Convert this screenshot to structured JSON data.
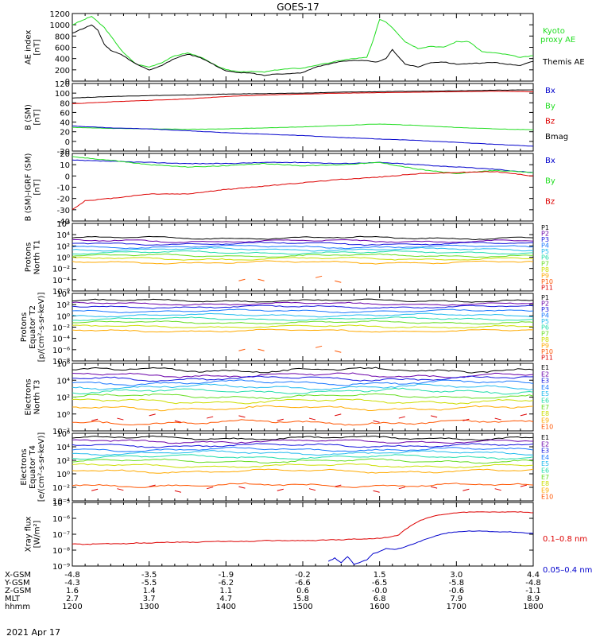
{
  "title": "GOES-17",
  "date_label": "2021 Apr 17",
  "colors": {
    "black": "#000000",
    "red": "#dd0000",
    "green": "#22dd22",
    "blue": "#0000cc",
    "p1": "#000000",
    "p2": "#6a00a8",
    "p3": "#1515dd",
    "p4": "#1a78ff",
    "p5": "#22bbee",
    "p6": "#22ddaa",
    "p7": "#66dd22",
    "p8": "#ccdd00",
    "p9": "#ffaa00",
    "p10": "#ff5500",
    "p11": "#dd0000"
  },
  "x_axis": {
    "hhmm": [
      "1200",
      "1300",
      "1400",
      "1500",
      "1600",
      "1700",
      "1800"
    ],
    "row_labels": [
      "X-GSM",
      "Y-GSM",
      "Z-GSM",
      "MLT",
      "hhmm"
    ],
    "x_gsm": [
      "-4.8",
      "-3.5",
      "-1.9",
      "-0.2",
      "1.5",
      "3.0",
      "4.4"
    ],
    "y_gsm": [
      "-4.3",
      "-5.5",
      "-6.2",
      "-6.6",
      "-6.5",
      "-5.8",
      "-4.8"
    ],
    "z_gsm": [
      "1.6",
      "1.4",
      "1.1",
      "0.6",
      "-0.0",
      "-0.6",
      "-1.1"
    ],
    "mlt": [
      "2.7",
      "3.7",
      "4.7",
      "5.8",
      "6.8",
      "7.9",
      "8.9"
    ]
  },
  "chart_data": [
    {
      "type": "line",
      "panel": "ae",
      "ylabel": [
        "AE index",
        "[nT]"
      ],
      "ylim": [
        0,
        1200
      ],
      "yticks": [
        "0",
        "200",
        "400",
        "600",
        "800",
        "1000",
        "1200"
      ],
      "legend": [
        {
          "label": "Kyoto",
          "color": "green"
        },
        {
          "label": "proxy AE",
          "color": "green"
        },
        {
          "label": "Themis AE",
          "color": "black"
        }
      ],
      "series": [
        {
          "name": "Kyoto proxy AE",
          "color": "green",
          "x": [
            1200,
            1210,
            1215,
            1220,
            1225,
            1230,
            1240,
            1250,
            1300,
            1310,
            1320,
            1330,
            1340,
            1350,
            1400,
            1410,
            1420,
            1430,
            1440,
            1450,
            1500,
            1510,
            1520,
            1530,
            1540,
            1550,
            1555,
            1600,
            1605,
            1610,
            1620,
            1630,
            1640,
            1650,
            1700,
            1710,
            1720,
            1730,
            1740,
            1750,
            1800
          ],
          "y": [
            1000,
            1100,
            1150,
            1050,
            950,
            800,
            500,
            300,
            250,
            330,
            450,
            500,
            430,
            300,
            200,
            170,
            170,
            160,
            200,
            220,
            230,
            280,
            320,
            370,
            400,
            420,
            720,
            1100,
            1050,
            950,
            700,
            580,
            620,
            600,
            700,
            700,
            520,
            500,
            470,
            420,
            450
          ]
        },
        {
          "name": "Themis AE",
          "color": "black",
          "x": [
            1200,
            1210,
            1215,
            1220,
            1225,
            1230,
            1240,
            1250,
            1300,
            1310,
            1320,
            1330,
            1340,
            1350,
            1400,
            1410,
            1420,
            1430,
            1440,
            1450,
            1500,
            1510,
            1520,
            1530,
            1540,
            1550,
            1555,
            1600,
            1605,
            1610,
            1620,
            1630,
            1640,
            1650,
            1700,
            1710,
            1720,
            1730,
            1740,
            1750,
            1800
          ],
          "y": [
            850,
            950,
            1000,
            900,
            650,
            550,
            450,
            300,
            200,
            280,
            400,
            480,
            420,
            300,
            180,
            150,
            140,
            100,
            130,
            130,
            150,
            250,
            300,
            350,
            370,
            360,
            340,
            350,
            400,
            560,
            300,
            250,
            330,
            340,
            300,
            310,
            320,
            330,
            300,
            280,
            350
          ]
        }
      ]
    },
    {
      "type": "line",
      "panel": "b",
      "ylabel": [
        "B (SM)",
        "[nT]"
      ],
      "ylim": [
        -20,
        120
      ],
      "yticks": [
        "-20",
        "0",
        "20",
        "40",
        "60",
        "80",
        "100",
        "120"
      ],
      "legend": [
        {
          "label": "Bx",
          "color": "blue"
        },
        {
          "label": "By",
          "color": "green"
        },
        {
          "label": "Bz",
          "color": "red"
        },
        {
          "label": "Bmag",
          "color": "black"
        }
      ],
      "series": [
        {
          "name": "Bmag",
          "color": "black",
          "x": [
            1200,
            1230,
            1300,
            1330,
            1400,
            1430,
            1500,
            1530,
            1600,
            1630,
            1700,
            1730,
            1800
          ],
          "y": [
            90,
            93,
            95,
            96,
            98,
            99,
            100,
            102,
            103,
            104,
            105,
            106,
            107
          ]
        },
        {
          "name": "Bz",
          "color": "red",
          "x": [
            1200,
            1230,
            1300,
            1330,
            1400,
            1430,
            1500,
            1530,
            1600,
            1630,
            1700,
            1730,
            1800
          ],
          "y": [
            78,
            82,
            85,
            88,
            93,
            96,
            98,
            100,
            101,
            102,
            103,
            104,
            103
          ]
        },
        {
          "name": "By",
          "color": "green",
          "x": [
            1200,
            1230,
            1300,
            1330,
            1400,
            1430,
            1500,
            1530,
            1600,
            1630,
            1700,
            1730,
            1800
          ],
          "y": [
            29,
            27,
            26,
            25,
            26,
            28,
            30,
            33,
            36,
            33,
            29,
            26,
            24
          ]
        },
        {
          "name": "Bx",
          "color": "blue",
          "x": [
            1200,
            1230,
            1300,
            1330,
            1400,
            1430,
            1500,
            1530,
            1600,
            1630,
            1700,
            1730,
            1800
          ],
          "y": [
            32,
            28,
            26,
            22,
            18,
            15,
            12,
            8,
            5,
            2,
            -2,
            -6,
            -10
          ]
        }
      ]
    },
    {
      "type": "line",
      "panel": "bigrf",
      "ylabel": [
        "B (SM)-IGRF (SM)",
        "[nT]"
      ],
      "ylim": [
        -40,
        20
      ],
      "yticks": [
        "-40",
        "-30",
        "-20",
        "-10",
        "0",
        "10",
        "20"
      ],
      "legend": [
        {
          "label": "Bx",
          "color": "blue"
        },
        {
          "label": "By",
          "color": "green"
        },
        {
          "label": "Bz",
          "color": "red"
        }
      ],
      "series": [
        {
          "name": "Bx",
          "color": "blue",
          "x": [
            1200,
            1230,
            1300,
            1330,
            1400,
            1430,
            1500,
            1530,
            1600,
            1630,
            1700,
            1730,
            1800
          ],
          "y": [
            14,
            13,
            12,
            11,
            11,
            12,
            12,
            11,
            12,
            10,
            8,
            6,
            3
          ]
        },
        {
          "name": "By",
          "color": "green",
          "x": [
            1200,
            1230,
            1300,
            1330,
            1400,
            1430,
            1500,
            1530,
            1600,
            1630,
            1700,
            1730,
            1800
          ],
          "y": [
            17,
            14,
            10,
            8,
            9,
            11,
            9,
            10,
            12,
            6,
            2,
            5,
            3
          ]
        },
        {
          "name": "Bz",
          "color": "red",
          "x": [
            1200,
            1210,
            1230,
            1300,
            1330,
            1400,
            1430,
            1500,
            1530,
            1600,
            1630,
            1700,
            1730,
            1800
          ],
          "y": [
            -30,
            -22,
            -20,
            -16,
            -16,
            -12,
            -9,
            -6,
            -3,
            -1,
            2,
            3,
            4,
            0
          ]
        }
      ]
    },
    {
      "type": "line",
      "panel": "protons_t1",
      "ylabel": [
        "Protons",
        "North T1"
      ],
      "ylim": [
        -7,
        6
      ],
      "log_scale": true,
      "yticks": [
        "10⁻⁶",
        "10⁻⁴",
        "10⁻²",
        "10⁰",
        "10²",
        "10⁴",
        "10⁶"
      ],
      "channels": [
        "P1",
        "P2",
        "P3",
        "P4",
        "P5",
        "P6",
        "P7",
        "P8",
        "P9",
        "P10",
        "P11"
      ],
      "levels": [
        3.2,
        2.6,
        2.1,
        1.5,
        1.0,
        0.4,
        -0.2,
        -0.8,
        -1.5,
        null,
        null
      ]
    },
    {
      "type": "line",
      "panel": "protons_t2",
      "ylabel": [
        "Protons",
        "Equator T2",
        "[p/(cm²-s-sr-keV)]"
      ],
      "ylim": [
        -9,
        4
      ],
      "log_scale": true,
      "yticks": [
        "10⁻⁸",
        "10⁻⁶",
        "10⁻⁴",
        "10⁻²",
        "10⁰",
        "10²",
        "10⁴"
      ],
      "channels": [
        "P1",
        "P2",
        "P3",
        "P4",
        "P5",
        "P6",
        "P7",
        "P8",
        "P9",
        "P10",
        "P11"
      ],
      "levels": [
        2.6,
        2.0,
        1.4,
        0.6,
        -0.2,
        -0.9,
        -1.6,
        -2.4,
        -3.2,
        null,
        null
      ]
    },
    {
      "type": "line",
      "panel": "electrons_t3",
      "ylabel": [
        "Electrons",
        "North T3"
      ],
      "ylim": [
        -2,
        6
      ],
      "log_scale": true,
      "yticks": [
        "10⁻²",
        "10⁰",
        "10²",
        "10⁴",
        "10⁶"
      ],
      "channels": [
        "E1",
        "E2",
        "E3",
        "E4",
        "E5",
        "E6",
        "E7",
        "E8",
        "E9",
        "E10"
      ],
      "levels": [
        5.2,
        4.6,
        4.2,
        3.7,
        3.2,
        2.7,
        2.1,
        1.5,
        0.7,
        -1.0
      ]
    },
    {
      "type": "line",
      "panel": "electrons_t4",
      "ylabel": [
        "Electrons",
        "Equator T4",
        "[e/(cm²-s-sr-keV)]"
      ],
      "ylim": [
        -4,
        6
      ],
      "log_scale": true,
      "yticks": [
        "10⁻⁴",
        "10⁻²",
        "10⁰",
        "10²",
        "10⁴",
        "10⁶"
      ],
      "channels": [
        "E1",
        "E2",
        "E3",
        "E4",
        "E5",
        "E6",
        "E7",
        "E8",
        "E9",
        "E10"
      ],
      "levels": [
        5.3,
        4.8,
        4.2,
        3.6,
        3.1,
        2.5,
        1.9,
        1.2,
        0.4,
        -1.7
      ]
    },
    {
      "type": "line",
      "panel": "xray",
      "ylabel": [
        "Xray flux",
        "[W/m²]"
      ],
      "ylim": [
        -9,
        -5
      ],
      "log_scale": true,
      "yticks": [
        "10⁻⁹",
        "10⁻⁸",
        "10⁻⁷",
        "10⁻⁶",
        "10⁻⁵"
      ],
      "legend": [
        {
          "label": "0.1–0.8 nm",
          "color": "red"
        },
        {
          "label": "0.05–0.4 nm",
          "color": "blue"
        }
      ],
      "series": [
        {
          "name": "0.1–0.8 nm",
          "color": "red",
          "x": [
            1200,
            1210,
            1220,
            1230,
            1240,
            1250,
            1300,
            1310,
            1320,
            1330,
            1340,
            1350,
            1400,
            1410,
            1420,
            1430,
            1440,
            1450,
            1500,
            1510,
            1520,
            1530,
            1540,
            1550,
            1600,
            1610,
            1615,
            1620,
            1630,
            1640,
            1650,
            1700,
            1710,
            1720,
            1730,
            1740,
            1750,
            1800
          ],
          "y": [
            -7.6,
            -7.65,
            -7.6,
            -7.6,
            -7.6,
            -7.55,
            -7.55,
            -7.5,
            -7.5,
            -7.5,
            -7.5,
            -7.45,
            -7.45,
            -7.45,
            -7.45,
            -7.4,
            -7.4,
            -7.4,
            -7.4,
            -7.4,
            -7.35,
            -7.35,
            -7.3,
            -7.3,
            -7.25,
            -7.15,
            -7.05,
            -6.7,
            -6.2,
            -5.9,
            -5.75,
            -5.65,
            -5.6,
            -5.6,
            -5.6,
            -5.6,
            -5.6,
            -5.65
          ]
        },
        {
          "name": "0.05–0.4 nm",
          "color": "blue",
          "x": [
            1520,
            1525,
            1530,
            1535,
            1540,
            1550,
            1555,
            1600,
            1605,
            1610,
            1615,
            1620,
            1630,
            1640,
            1650,
            1700,
            1710,
            1720,
            1730,
            1740,
            1750,
            1800
          ],
          "y": [
            -8.7,
            -8.5,
            -8.8,
            -8.4,
            -8.9,
            -8.6,
            -8.2,
            -8.1,
            -7.9,
            -7.95,
            -7.9,
            -7.8,
            -7.5,
            -7.2,
            -6.95,
            -6.85,
            -6.8,
            -6.8,
            -6.85,
            -6.85,
            -6.9,
            -6.95
          ]
        }
      ]
    }
  ]
}
